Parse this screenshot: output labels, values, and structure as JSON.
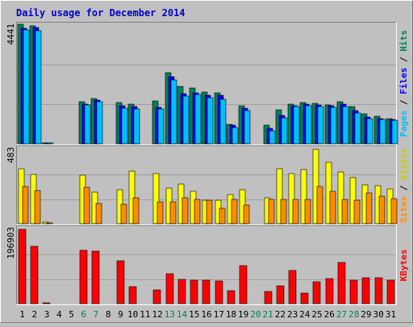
{
  "chart_data": {
    "type": "bar",
    "title": "Daily usage for December 2014",
    "categories": [
      "1",
      "2",
      "3",
      "4",
      "5",
      "6",
      "7",
      "8",
      "9",
      "10",
      "11",
      "12",
      "13",
      "14",
      "15",
      "16",
      "17",
      "18",
      "19",
      "20",
      "21",
      "22",
      "23",
      "24",
      "25",
      "26",
      "27",
      "28",
      "29",
      "30",
      "31"
    ],
    "weekend_days": [
      "6",
      "7",
      "13",
      "14",
      "20",
      "21",
      "27",
      "28"
    ],
    "panels": [
      {
        "id": "hits",
        "axis_max_label": "4441",
        "ylim": [
          0,
          4441
        ],
        "legend": [
          "Pages",
          "Files",
          "Hits"
        ],
        "series": [
          {
            "name": "Hits",
            "color": "#00805c",
            "values": [
              4441,
              4380,
              40,
              0,
              0,
              1550,
              1690,
              0,
              1530,
              1460,
              0,
              1600,
              2650,
              2120,
              2080,
              1920,
              1900,
              720,
              1410,
              0,
              700,
              1260,
              1480,
              1540,
              1510,
              1450,
              1560,
              1370,
              1100,
              1020,
              930
            ]
          },
          {
            "name": "Files",
            "color": "#0000ff",
            "values": [
              4280,
              4320,
              40,
              0,
              0,
              1480,
              1630,
              0,
              1400,
              1390,
              0,
              1350,
              2500,
              1870,
              1890,
              1800,
              1810,
              680,
              1320,
              0,
              560,
              1040,
              1410,
              1470,
              1450,
              1400,
              1460,
              1230,
              980,
              940,
              890
            ]
          },
          {
            "name": "Pages",
            "color": "#00bfff",
            "values": [
              4220,
              4200,
              30,
              0,
              0,
              1450,
              1570,
              0,
              1330,
              1300,
              0,
              1280,
              2370,
              1780,
              1840,
              1720,
              1650,
              600,
              1230,
              0,
              490,
              950,
              1370,
              1420,
              1390,
              1360,
              1390,
              1130,
              920,
              900,
              860
            ]
          }
        ]
      },
      {
        "id": "visits",
        "axis_max_label": "483",
        "ylim": [
          0,
          483
        ],
        "legend": [
          "Sites",
          "Visits"
        ],
        "series": [
          {
            "name": "Visits",
            "color": "#ffff00",
            "values": [
              357,
              320,
              8,
              0,
              0,
              316,
              203,
              0,
              222,
              340,
              0,
              325,
              232,
              258,
              211,
              150,
              150,
              188,
              218,
              0,
              168,
              355,
              327,
              350,
              483,
              400,
              335,
              300,
              250,
              248,
              228
            ]
          },
          {
            "name": "Sites",
            "color": "#ff8c00",
            "values": [
              240,
              215,
              5,
              0,
              0,
              235,
              130,
              0,
              127,
              170,
              0,
              140,
              140,
              170,
              160,
              150,
              100,
              155,
              120,
              0,
              155,
              155,
              155,
              155,
              240,
              210,
              155,
              150,
              200,
              180,
              165
            ]
          }
        ]
      },
      {
        "id": "kbytes",
        "axis_max_label": "196903",
        "ylim": [
          0,
          196903
        ],
        "legend": [
          "KBytes"
        ],
        "series": [
          {
            "name": "KBytes",
            "color": "#ff0000",
            "values": [
              196903,
              151000,
              3000,
              0,
              0,
              141000,
              139000,
              0,
              113000,
              45000,
              0,
              37000,
              80000,
              65000,
              63000,
              63000,
              60000,
              34000,
              100000,
              0,
              33000,
              48000,
              88000,
              28000,
              58000,
              67000,
              110000,
              62000,
              69000,
              68000,
              61000
            ]
          }
        ]
      }
    ]
  }
}
